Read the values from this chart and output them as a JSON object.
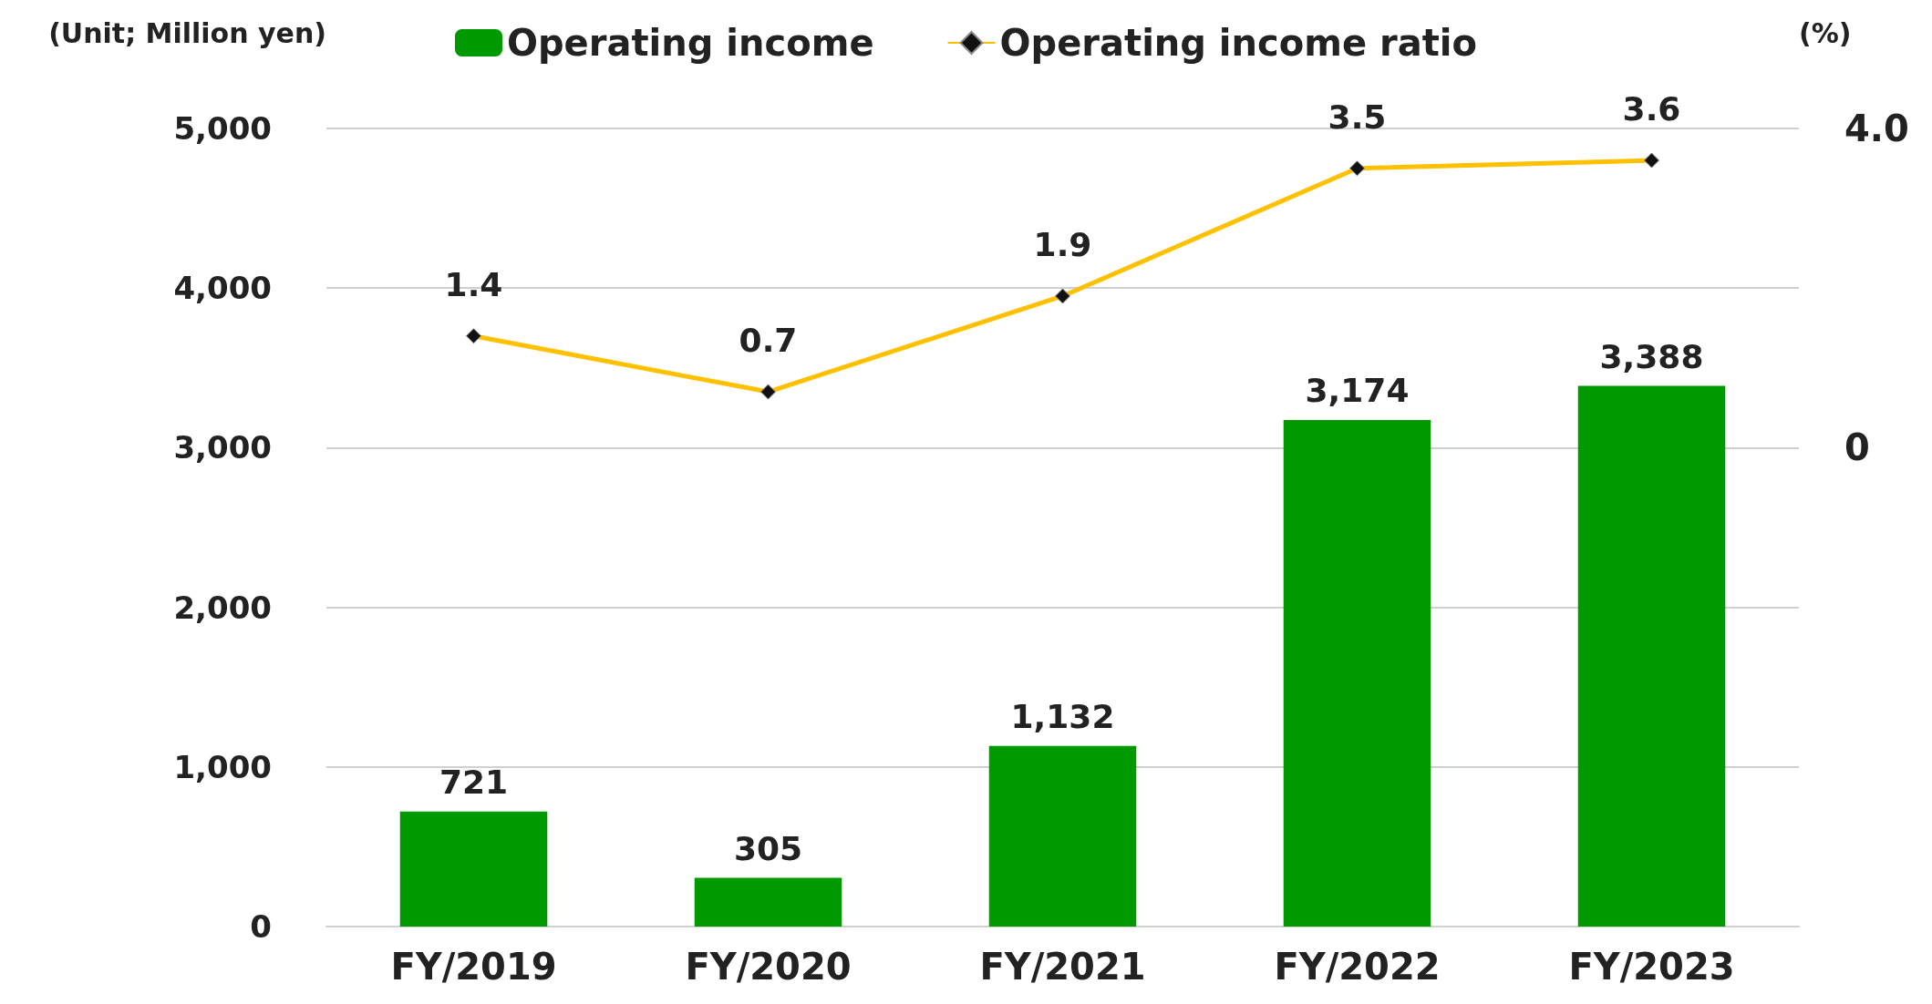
{
  "chart_data": {
    "type": "bar",
    "ylabel": "(Unit; Million yen)",
    "y2label": "(%)",
    "categories": [
      "FY/2019",
      "FY/2020",
      "FY/2021",
      "FY/2022",
      "FY/2023"
    ],
    "series": [
      {
        "name": "Operating income",
        "color": "#009900",
        "values": [
          721,
          305,
          1132,
          3174,
          3388
        ],
        "value_labels": [
          "721",
          "305",
          "1,132",
          "3,174",
          "3,388"
        ]
      },
      {
        "name": "Operating income ratio",
        "type": "line",
        "axis": "y2",
        "color": "#ffc000",
        "marker": "diamond",
        "values": [
          1.4,
          0.7,
          1.9,
          3.5,
          3.6
        ],
        "value_labels": [
          "1.4",
          "0.7",
          "1.9",
          "3.5",
          "3.6"
        ]
      }
    ],
    "ylim": [
      0,
      5000
    ],
    "yticks": [
      0,
      {
        "value": 1000,
        "label": "1,000"
      },
      {
        "value": 2000,
        "label": "2,000"
      },
      {
        "value": 3000,
        "label": "3,000"
      },
      {
        "value": 4000,
        "label": "4,000"
      },
      {
        "value": 5000,
        "label": "5,000"
      }
    ],
    "y2lim": [
      -6,
      4
    ],
    "y2ticks": [
      0,
      {
        "value": 4,
        "label": "4.0"
      }
    ],
    "grid": "y",
    "legend": "top"
  }
}
